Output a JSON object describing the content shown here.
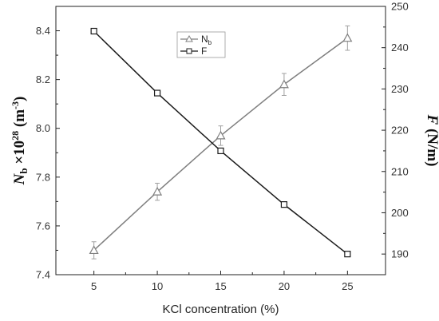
{
  "chart_data": {
    "type": "line",
    "x": [
      5,
      10,
      15,
      20,
      25
    ],
    "xlabel": "KCl concentration (%)",
    "xlim": [
      2,
      28
    ],
    "xticks": [
      "5",
      "10",
      "15",
      "20",
      "25"
    ],
    "ylabel_left": {
      "main": "N",
      "sub": "b",
      "mid": " ×10",
      "sup": "28",
      "unit_open": " (m",
      "unit_sup": "-3",
      "unit_close": ")"
    },
    "ylabel_right": {
      "italic": "F",
      "rest": " (N/m)"
    },
    "ylim_left": [
      7.4,
      8.5
    ],
    "ylim_right": [
      185,
      250
    ],
    "yticks_left": [
      "7.4",
      "7.6",
      "7.8",
      "8.0",
      "8.2",
      "8.4"
    ],
    "yticks_right": [
      "190",
      "200",
      "210",
      "220",
      "230",
      "240",
      "250"
    ],
    "series": [
      {
        "name": "N",
        "name_sub": "b",
        "axis": "left",
        "marker": "triangle",
        "color": "#7f7f7f",
        "values": [
          7.5,
          7.74,
          7.97,
          8.18,
          8.37
        ],
        "errors": [
          0.035,
          0.035,
          0.04,
          0.045,
          0.05
        ]
      },
      {
        "name": "F",
        "axis": "right",
        "marker": "square",
        "color": "#1a1a1a",
        "values": [
          244,
          229,
          215,
          202,
          190
        ]
      }
    ],
    "grid": false,
    "legend": "top-left"
  }
}
